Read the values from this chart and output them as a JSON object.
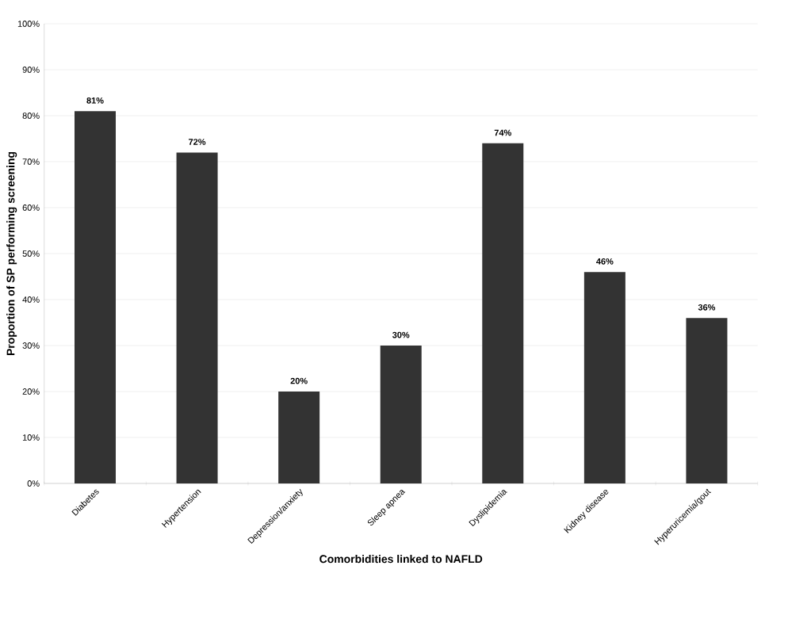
{
  "chart_data": {
    "type": "bar",
    "xlabel": "Comorbidities linked to NAFLD",
    "ylabel": "Proportion of SP performing screening",
    "categories": [
      "Diabetes",
      "Hypertension",
      "Depression/anxiety",
      "Sleep apnea",
      "Dyslipidemia",
      "Kidney disease",
      "Hyperuricemia/gout"
    ],
    "values": [
      81,
      72,
      20,
      30,
      74,
      46,
      36
    ],
    "value_labels": [
      "81%",
      "72%",
      "20%",
      "30%",
      "74%",
      "46%",
      "36%"
    ],
    "color": "#333333",
    "ylim": [
      0,
      100
    ],
    "yticks": [
      {
        "value": 0,
        "label": "0%"
      },
      {
        "value": 10,
        "label": "10%"
      },
      {
        "value": 20,
        "label": "20%"
      },
      {
        "value": 30,
        "label": "30%"
      },
      {
        "value": 40,
        "label": "40%"
      },
      {
        "value": 50,
        "label": "50%"
      },
      {
        "value": 60,
        "label": "60%"
      },
      {
        "value": 70,
        "label": "70%"
      },
      {
        "value": 80,
        "label": "80%"
      },
      {
        "value": 90,
        "label": "90%"
      },
      {
        "value": 100,
        "label": "100%"
      }
    ],
    "grid": "y"
  }
}
